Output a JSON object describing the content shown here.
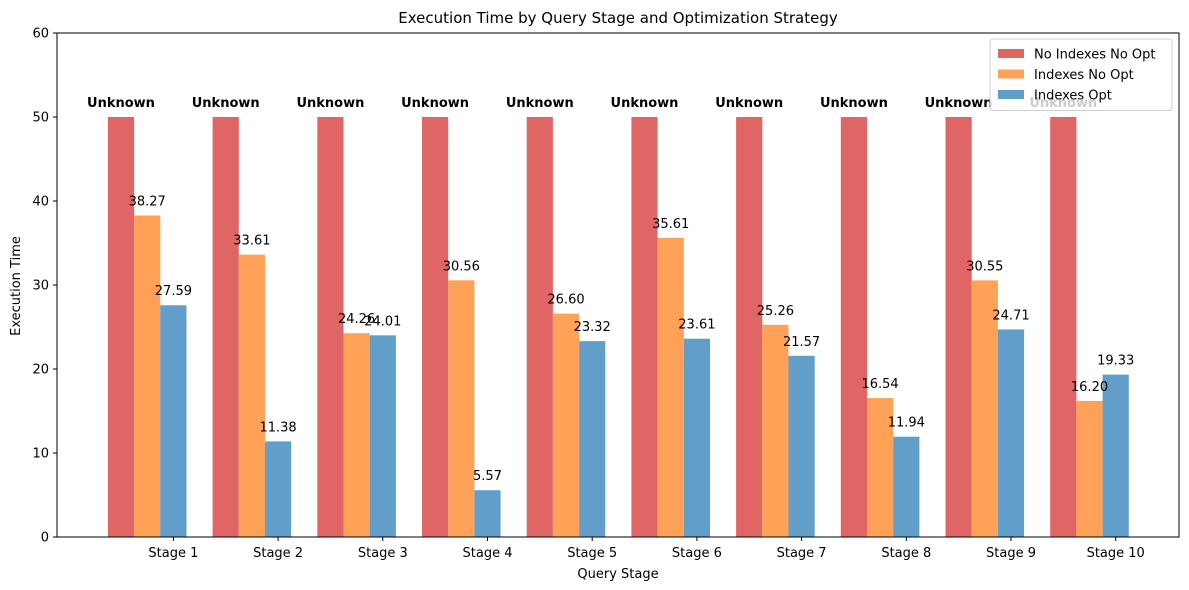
{
  "chart_data": {
    "type": "bar",
    "title": "Execution Time by Query Stage and Optimization Strategy",
    "xlabel": "Query Stage",
    "ylabel": "Execution Time",
    "ylim": [
      0,
      60
    ],
    "yticks": [
      0,
      10,
      20,
      30,
      40,
      50,
      60
    ],
    "categories": [
      "Stage 1",
      "Stage 2",
      "Stage 3",
      "Stage 4",
      "Stage 5",
      "Stage 6",
      "Stage 7",
      "Stage 8",
      "Stage 9",
      "Stage 10"
    ],
    "series": [
      {
        "name": "No Indexes No Opt",
        "color": "#e06666",
        "values": [
          50,
          50,
          50,
          50,
          50,
          50,
          50,
          50,
          50,
          50
        ],
        "labels": [
          "Unknown",
          "Unknown",
          "Unknown",
          "Unknown",
          "Unknown",
          "Unknown",
          "Unknown",
          "Unknown",
          "Unknown",
          "Unknown"
        ],
        "label_weight": "bold"
      },
      {
        "name": "Indexes No Opt",
        "color": "#ffa257",
        "values": [
          38.27,
          33.61,
          24.26,
          30.56,
          26.6,
          35.61,
          25.26,
          16.54,
          30.55,
          16.2
        ],
        "labels": [
          "38.27",
          "33.61",
          "24.26",
          "30.56",
          "26.60",
          "35.61",
          "25.26",
          "16.54",
          "30.55",
          "16.20"
        ]
      },
      {
        "name": "Indexes Opt",
        "color": "#619fca",
        "values": [
          27.59,
          11.38,
          24.01,
          5.57,
          23.32,
          23.61,
          21.57,
          11.94,
          24.71,
          19.33
        ],
        "labels": [
          "27.59",
          "11.38",
          "24.01",
          "5.57",
          "23.32",
          "23.61",
          "21.57",
          "11.94",
          "24.71",
          "19.33"
        ]
      }
    ],
    "legend_position": "top-right",
    "grid": false
  }
}
